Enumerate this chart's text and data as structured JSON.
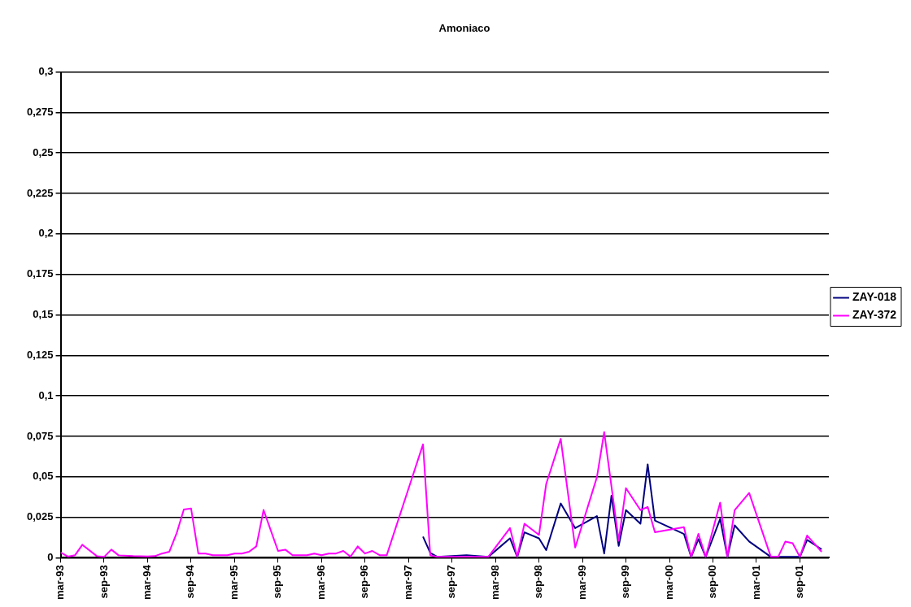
{
  "chart_data": {
    "type": "line",
    "title": "Amoniaco",
    "xlim": [
      "1993-03",
      "2002-01"
    ],
    "xticks": [
      {
        "value": "1993-03",
        "label": "mar-93"
      },
      {
        "value": "1993-09",
        "label": "sep-93"
      },
      {
        "value": "1994-03",
        "label": "mar-94"
      },
      {
        "value": "1994-09",
        "label": "sep-94"
      },
      {
        "value": "1995-03",
        "label": "mar-95"
      },
      {
        "value": "1995-09",
        "label": "sep-95"
      },
      {
        "value": "1996-03",
        "label": "mar-96"
      },
      {
        "value": "1996-09",
        "label": "sep-96"
      },
      {
        "value": "1997-03",
        "label": "mar-97"
      },
      {
        "value": "1997-09",
        "label": "sep-97"
      },
      {
        "value": "1998-03",
        "label": "mar-98"
      },
      {
        "value": "1998-09",
        "label": "sep-98"
      },
      {
        "value": "1999-03",
        "label": "mar-99"
      },
      {
        "value": "1999-09",
        "label": "sep-99"
      },
      {
        "value": "2000-03",
        "label": "mar-00"
      },
      {
        "value": "2000-09",
        "label": "sep-00"
      },
      {
        "value": "2001-03",
        "label": "mar-01"
      },
      {
        "value": "2001-09",
        "label": "sep-01"
      }
    ],
    "ylim": [
      0,
      0.3
    ],
    "yticks": [
      0,
      {
        "value": 0.025,
        "label": "0,025"
      },
      {
        "value": 0.05,
        "label": "0,05"
      },
      {
        "value": 0.075,
        "label": "0,075"
      },
      {
        "value": 0.1,
        "label": "0,1"
      },
      {
        "value": 0.125,
        "label": "0,125"
      },
      {
        "value": 0.15,
        "label": "0,15"
      },
      {
        "value": 0.175,
        "label": "0,175"
      },
      {
        "value": 0.2,
        "label": "0,2"
      },
      {
        "value": 0.225,
        "label": "0,225"
      },
      {
        "value": 0.25,
        "label": "0,25"
      },
      {
        "value": 0.275,
        "label": "0,275"
      },
      {
        "value": 0.3,
        "label": "0,3"
      }
    ],
    "grid": "y",
    "legend": "right",
    "marker": "none",
    "line_style": "solid",
    "series": [
      {
        "name": "ZAY-018",
        "color": "#000080",
        "x": [
          "1997-05",
          "1997-06",
          "1997-07",
          "1997-11",
          "1998-02",
          "1998-05",
          "1998-06",
          "1998-07",
          "1998-09",
          "1998-10",
          "1998-12",
          "1999-02",
          "1999-05",
          "1999-06",
          "1999-07",
          "1999-08",
          "1999-09",
          "1999-11",
          "1999-12",
          "2000-01",
          "2000-05",
          "2000-06",
          "2000-07",
          "2000-08",
          "2000-10",
          "2000-11",
          "2000-12",
          "2001-02",
          "2001-05",
          "2001-09",
          "2001-10",
          "2001-12"
        ],
        "values": [
          0.013,
          0.003,
          0.0005,
          0.0016,
          0.0005,
          0.012,
          0.0005,
          0.0157,
          0.012,
          0.0047,
          0.0335,
          0.0183,
          0.0257,
          0.0026,
          0.0383,
          0.0073,
          0.0294,
          0.021,
          0.0577,
          0.023,
          0.0147,
          0.0005,
          0.0115,
          0.0005,
          0.024,
          0.0005,
          0.02,
          0.01,
          0.0005,
          0.0005,
          0.011,
          0.0052
        ]
      },
      {
        "name": "ZAY-372",
        "color": "#ff00ff",
        "x": [
          "1993-03",
          "1993-04",
          "1993-05",
          "1993-06",
          "1993-08",
          "1993-09",
          "1993-10",
          "1993-11",
          "1994-01",
          "1994-03",
          "1994-04",
          "1994-05",
          "1994-06",
          "1994-07",
          "1994-08",
          "1994-09",
          "1994-10",
          "1994-11",
          "1994-12",
          "1995-02",
          "1995-03",
          "1995-04",
          "1995-05",
          "1995-06",
          "1995-07",
          "1995-09",
          "1995-10",
          "1995-11",
          "1996-01",
          "1996-02",
          "1996-03",
          "1996-04",
          "1996-05",
          "1996-06",
          "1996-07",
          "1996-08",
          "1996-09",
          "1996-10",
          "1996-11",
          "1996-12",
          "1997-05",
          "1997-06",
          "1997-07",
          "1997-10",
          "1998-02",
          "1998-05",
          "1998-06",
          "1998-07",
          "1998-09",
          "1998-10",
          "1998-12",
          "1999-02",
          "1999-05",
          "1999-06",
          "1999-08",
          "1999-09",
          "1999-11",
          "1999-12",
          "2000-01",
          "2000-05",
          "2000-06",
          "2000-07",
          "2000-08",
          "2000-10",
          "2000-11",
          "2000-12",
          "2001-02",
          "2001-05",
          "2001-06",
          "2001-07",
          "2001-08",
          "2001-09",
          "2001-10",
          "2001-12"
        ],
        "values": [
          0.0033,
          0.0007,
          0.0016,
          0.008,
          0.001,
          0.0005,
          0.005,
          0.0015,
          0.001,
          0.0008,
          0.001,
          0.0026,
          0.0037,
          0.015,
          0.0298,
          0.0304,
          0.0026,
          0.0026,
          0.0016,
          0.0016,
          0.0026,
          0.0026,
          0.0037,
          0.007,
          0.0295,
          0.0042,
          0.005,
          0.0016,
          0.0016,
          0.0026,
          0.0016,
          0.0026,
          0.0026,
          0.0042,
          0.0007,
          0.007,
          0.0026,
          0.0042,
          0.0016,
          0.0016,
          0.07,
          0.0016,
          0.0005,
          0.0005,
          0.0005,
          0.0183,
          0.0005,
          0.021,
          0.0141,
          0.0456,
          0.0734,
          0.0063,
          0.0498,
          0.0776,
          0.0105,
          0.043,
          0.0294,
          0.0314,
          0.0157,
          0.0189,
          0.0005,
          0.0147,
          0.0005,
          0.034,
          0.0005,
          0.0294,
          0.04,
          0.0005,
          0.0005,
          0.01,
          0.009,
          0.0005,
          0.0137,
          0.0037
        ]
      }
    ]
  }
}
